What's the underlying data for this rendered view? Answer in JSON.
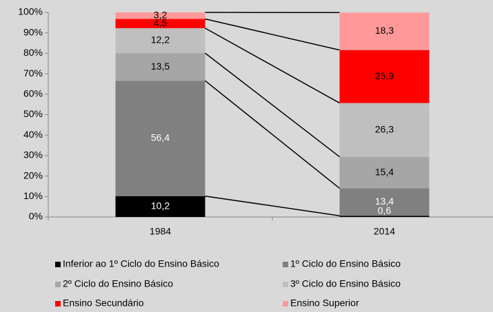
{
  "chart_data": {
    "type": "stacked_bar",
    "categories": [
      "1984",
      "2014"
    ],
    "series": [
      {
        "name": "Inferior ao 1º Ciclo do Ensino Básico",
        "color": "#000000",
        "label_color": "#ffffff",
        "values": [
          10.2,
          0.6
        ],
        "value_labels": [
          "10,2",
          "0,6"
        ]
      },
      {
        "name": "1º Ciclo do Ensino Básico",
        "color": "#808080",
        "label_color": "#ffffff",
        "values": [
          56.4,
          13.4
        ],
        "value_labels": [
          "56,4",
          "13,4"
        ]
      },
      {
        "name": "2º Ciclo do Ensino Básico",
        "color": "#a6a6a6",
        "label_color": "#000000",
        "values": [
          13.5,
          15.4
        ],
        "value_labels": [
          "13,5",
          "15,4"
        ]
      },
      {
        "name": "3º Ciclo do Ensino Básico",
        "color": "#bfbfbf",
        "label_color": "#000000",
        "values": [
          12.2,
          26.3
        ],
        "value_labels": [
          "12,2",
          "26,3"
        ]
      },
      {
        "name": "Ensino Secundário",
        "color": "#ff0000",
        "label_color": "#000000",
        "values": [
          4.5,
          25.9
        ],
        "value_labels": [
          "4,5",
          "25,9"
        ]
      },
      {
        "name": "Ensino Superior",
        "color": "#ff9999",
        "label_color": "#000000",
        "values": [
          3.2,
          18.3
        ],
        "value_labels": [
          "3,2",
          "18,3"
        ]
      }
    ],
    "ylim": [
      0,
      100
    ],
    "yticks": [
      {
        "value": 0,
        "label": "0%"
      },
      {
        "value": 10,
        "label": "10%"
      },
      {
        "value": 20,
        "label": "20%"
      },
      {
        "value": 30,
        "label": "30%"
      },
      {
        "value": 40,
        "label": "40%"
      },
      {
        "value": 50,
        "label": "50%"
      },
      {
        "value": 60,
        "label": "60%"
      },
      {
        "value": 70,
        "label": "70%"
      },
      {
        "value": 80,
        "label": "80%"
      },
      {
        "value": 90,
        "label": "90%"
      },
      {
        "value": 100,
        "label": "100%"
      }
    ],
    "connectors": true
  }
}
